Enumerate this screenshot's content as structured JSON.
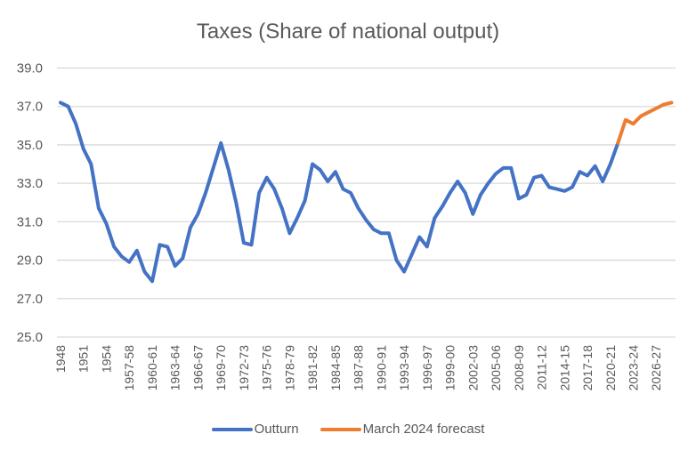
{
  "chart_data": {
    "type": "line",
    "title": "Taxes (Share of national output)",
    "xlabel": "",
    "ylabel": "",
    "ylim": [
      25.0,
      39.0
    ],
    "yticks": [
      "25.0",
      "27.0",
      "29.0",
      "31.0",
      "33.0",
      "35.0",
      "37.0",
      "39.0"
    ],
    "grid": true,
    "legend_position": "bottom",
    "categories": [
      "1948",
      "1949",
      "1950",
      "1951",
      "1952",
      "1953",
      "1954",
      "1955",
      "1956",
      "1957-58",
      "1958-59",
      "1959-60",
      "1960-61",
      "1961-62",
      "1962-63",
      "1963-64",
      "1964-65",
      "1965-66",
      "1966-67",
      "1967-68",
      "1968-69",
      "1969-70",
      "1970-71",
      "1971-72",
      "1972-73",
      "1973-74",
      "1974-75",
      "1975-76",
      "1976-77",
      "1977-78",
      "1978-79",
      "1979-80",
      "1980-81",
      "1981-82",
      "1982-83",
      "1983-84",
      "1984-85",
      "1985-86",
      "1986-87",
      "1987-88",
      "1988-89",
      "1989-90",
      "1990-91",
      "1991-92",
      "1992-93",
      "1993-94",
      "1994-95",
      "1995-96",
      "1996-97",
      "1997-98",
      "1998-99",
      "1999-00",
      "2000-01",
      "2001-02",
      "2002-03",
      "2003-04",
      "2004-05",
      "2005-06",
      "2006-07",
      "2007-08",
      "2008-09",
      "2009-10",
      "2010-11",
      "2011-12",
      "2012-13",
      "2013-14",
      "2014-15",
      "2015-16",
      "2016-17",
      "2017-18",
      "2018-19",
      "2019-20",
      "2020-21",
      "2021-22",
      "2022-23",
      "2023-24",
      "2024-25",
      "2025-26",
      "2026-27",
      "2027-28",
      "2028-29"
    ],
    "xtick_labels": [
      "1948",
      "1951",
      "1954",
      "1957-58",
      "1960-61",
      "1963-64",
      "1966-67",
      "1969-70",
      "1972-73",
      "1975-76",
      "1978-79",
      "1981-82",
      "1984-85",
      "1987-88",
      "1990-91",
      "1993-94",
      "1996-97",
      "1999-00",
      "2002-03",
      "2005-06",
      "2008-09",
      "2011-12",
      "2014-15",
      "2017-18",
      "2020-21",
      "2023-24",
      "2026-27"
    ],
    "series": [
      {
        "name": "Outturn",
        "color": "#4472c4",
        "start_index": 0,
        "values": [
          37.2,
          37.0,
          36.1,
          34.8,
          34.0,
          31.7,
          30.9,
          29.7,
          29.2,
          28.9,
          29.5,
          28.4,
          27.9,
          29.8,
          29.7,
          28.7,
          29.1,
          30.7,
          31.4,
          32.5,
          33.8,
          35.1,
          33.7,
          32.0,
          29.9,
          29.8,
          32.5,
          33.3,
          32.7,
          31.7,
          30.4,
          31.2,
          32.1,
          34.0,
          33.7,
          33.1,
          33.6,
          32.7,
          32.5,
          31.7,
          31.1,
          30.6,
          30.4,
          30.4,
          29.0,
          28.4,
          29.3,
          30.2,
          29.7,
          31.2,
          31.8,
          32.5,
          33.1,
          32.5,
          31.4,
          32.4,
          33.0,
          33.5,
          33.8,
          33.8,
          32.2,
          32.4,
          33.3,
          33.4,
          32.8,
          32.7,
          32.6,
          32.8,
          33.6,
          33.4,
          33.9,
          33.1,
          34.0,
          35.1
        ]
      },
      {
        "name": "March 2024 forecast",
        "color": "#ed7d31",
        "start_index": 73,
        "values": [
          35.1,
          36.3,
          36.1,
          36.5,
          36.7,
          36.9,
          37.1,
          37.2
        ]
      }
    ]
  }
}
